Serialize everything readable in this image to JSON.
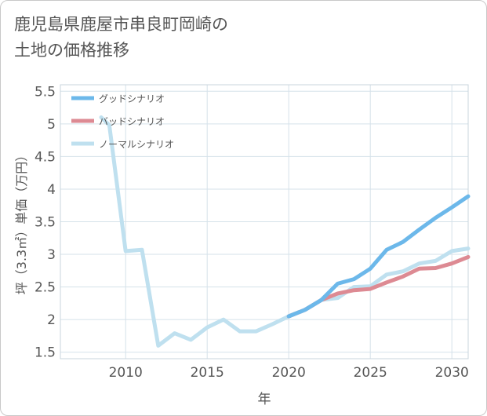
{
  "title_line1": "鹿児島県鹿屋市串良町岡崎の",
  "title_line2": "土地の価格推移",
  "chart_data": {
    "type": "line",
    "xlabel": "年",
    "ylabel": "坪（3.3㎡）単価（万円）",
    "xlim": [
      2006,
      2031
    ],
    "ylim": [
      1.4,
      5.6
    ],
    "xticks": [
      2010,
      2015,
      2020,
      2025,
      2030
    ],
    "yticks": [
      1.5,
      2,
      2.5,
      3,
      3.5,
      4,
      4.5,
      5,
      5.5
    ],
    "ytick_labels": [
      "1.5",
      "2",
      "2.5",
      "3",
      "3.5",
      "4",
      "4.5",
      "5",
      "5.5"
    ],
    "grid": true,
    "legend_position": "top-left",
    "series": [
      {
        "name": "グッドシナリオ",
        "color": "#6cb8ea",
        "x": [
          2020,
          2021,
          2022,
          2023,
          2024,
          2025,
          2026,
          2027,
          2028,
          2029,
          2030,
          2031
        ],
        "y": [
          2.05,
          2.15,
          2.3,
          2.55,
          2.62,
          2.78,
          3.07,
          3.19,
          3.38,
          3.56,
          3.72,
          3.89
        ]
      },
      {
        "name": "バッドシナリオ",
        "color": "#dd8a93",
        "x": [
          2020,
          2021,
          2022,
          2023,
          2024,
          2025,
          2026,
          2027,
          2028,
          2029,
          2030,
          2031
        ],
        "y": [
          2.05,
          2.15,
          2.3,
          2.4,
          2.45,
          2.47,
          2.57,
          2.66,
          2.78,
          2.79,
          2.86,
          2.96
        ]
      },
      {
        "name": "ノーマルシナリオ",
        "color": "#bfe0ef",
        "x": [
          2008.5,
          2009,
          2010,
          2011,
          2012,
          2013,
          2014,
          2015,
          2016,
          2017,
          2018,
          2019,
          2020,
          2021,
          2022,
          2023,
          2024,
          2025,
          2026,
          2027,
          2028,
          2029,
          2030,
          2031
        ],
        "y": [
          5.1,
          4.98,
          3.05,
          3.07,
          1.6,
          1.79,
          1.69,
          1.88,
          2.0,
          1.82,
          1.82,
          1.93,
          2.05,
          2.15,
          2.3,
          2.33,
          2.5,
          2.51,
          2.69,
          2.74,
          2.86,
          2.9,
          3.05,
          3.09
        ]
      }
    ]
  }
}
